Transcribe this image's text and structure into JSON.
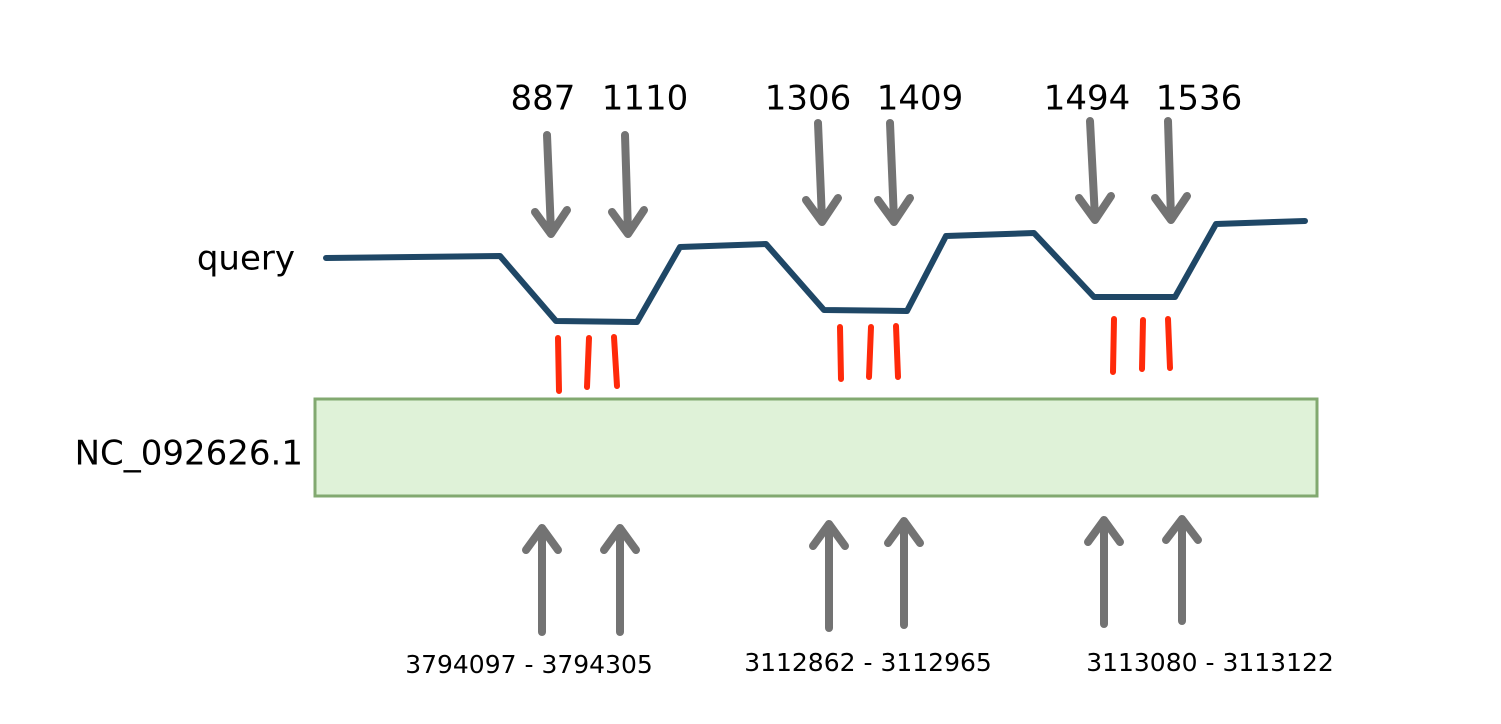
{
  "query": {
    "label": "query",
    "positions": [
      "887",
      "1110",
      "1306",
      "1409",
      "1494",
      "1536"
    ]
  },
  "subject": {
    "label": "NC_092626.1",
    "ranges": [
      "3794097 - 3794305",
      "3112862 - 3112965",
      "3113080 - 3113122"
    ]
  }
}
